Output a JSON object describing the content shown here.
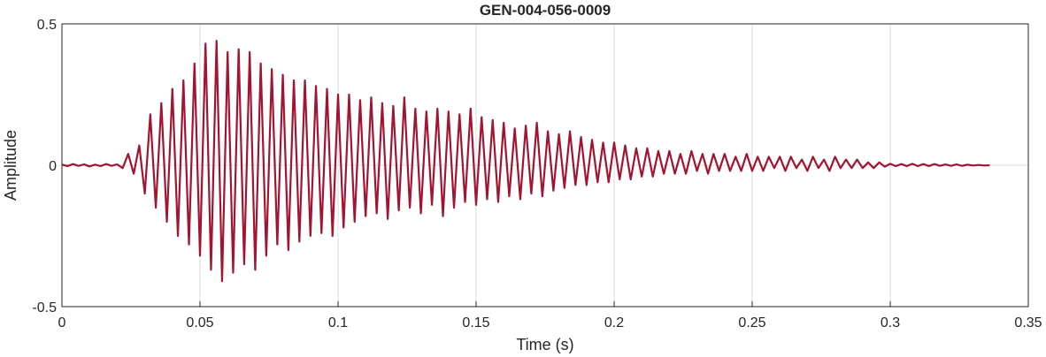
{
  "chart_data": {
    "type": "line",
    "title": "GEN-004-056-0009",
    "x_label": "Time (s)",
    "y_label": "Amplitude",
    "color": "#a2142f",
    "grid": true,
    "xlim": [
      0,
      0.35
    ],
    "xticks": [
      0,
      0.05,
      0.1,
      0.15,
      0.2,
      0.25,
      0.3,
      0.35
    ],
    "ylim": [
      -0.5,
      0.5
    ],
    "yticks": [
      -0.5,
      0,
      0.5
    ],
    "x": [
      0,
      0.002,
      0.004,
      0.006,
      0.008,
      0.01,
      0.012,
      0.014,
      0.016,
      0.018,
      0.02,
      0.022,
      0.024,
      0.026,
      0.028,
      0.03,
      0.032,
      0.034,
      0.036,
      0.038,
      0.04,
      0.042,
      0.044,
      0.046,
      0.048,
      0.05,
      0.052,
      0.054,
      0.056,
      0.058,
      0.06,
      0.062,
      0.064,
      0.066,
      0.068,
      0.07,
      0.072,
      0.074,
      0.076,
      0.078,
      0.08,
      0.082,
      0.084,
      0.086,
      0.088,
      0.09,
      0.092,
      0.094,
      0.096,
      0.098,
      0.1,
      0.102,
      0.104,
      0.106,
      0.108,
      0.11,
      0.112,
      0.114,
      0.116,
      0.118,
      0.12,
      0.122,
      0.124,
      0.126,
      0.128,
      0.13,
      0.132,
      0.134,
      0.136,
      0.138,
      0.14,
      0.142,
      0.144,
      0.146,
      0.148,
      0.15,
      0.152,
      0.154,
      0.156,
      0.158,
      0.16,
      0.162,
      0.164,
      0.166,
      0.168,
      0.17,
      0.172,
      0.174,
      0.176,
      0.178,
      0.18,
      0.182,
      0.184,
      0.186,
      0.188,
      0.19,
      0.192,
      0.194,
      0.196,
      0.198,
      0.2,
      0.202,
      0.204,
      0.206,
      0.208,
      0.21,
      0.212,
      0.214,
      0.216,
      0.218,
      0.22,
      0.222,
      0.224,
      0.226,
      0.228,
      0.23,
      0.232,
      0.234,
      0.236,
      0.238,
      0.24,
      0.242,
      0.244,
      0.246,
      0.248,
      0.25,
      0.252,
      0.254,
      0.256,
      0.258,
      0.26,
      0.262,
      0.264,
      0.266,
      0.268,
      0.27,
      0.272,
      0.274,
      0.276,
      0.278,
      0.28,
      0.282,
      0.284,
      0.286,
      0.288,
      0.29,
      0.292,
      0.294,
      0.296,
      0.298,
      0.3,
      0.302,
      0.304,
      0.306,
      0.308,
      0.31,
      0.312,
      0.314,
      0.316,
      0.318,
      0.32,
      0.322,
      0.324,
      0.326,
      0.328,
      0.33,
      0.332,
      0.334,
      0.336
    ],
    "values": [
      0.002,
      -0.003,
      0.004,
      -0.002,
      0.003,
      -0.004,
      0.002,
      -0.003,
      0.004,
      -0.002,
      0.003,
      -0.01,
      0.04,
      -0.03,
      0.07,
      -0.1,
      0.18,
      -0.15,
      0.22,
      -0.2,
      0.27,
      -0.25,
      0.3,
      -0.28,
      0.36,
      -0.32,
      0.43,
      -0.37,
      0.44,
      -0.41,
      0.4,
      -0.38,
      0.41,
      -0.35,
      0.4,
      -0.37,
      0.36,
      -0.32,
      0.34,
      -0.28,
      0.32,
      -0.3,
      0.3,
      -0.27,
      0.3,
      -0.25,
      0.28,
      -0.24,
      0.27,
      -0.25,
      0.25,
      -0.22,
      0.25,
      -0.2,
      0.23,
      -0.18,
      0.24,
      -0.17,
      0.22,
      -0.19,
      0.21,
      -0.16,
      0.24,
      -0.15,
      0.2,
      -0.17,
      0.19,
      -0.14,
      0.2,
      -0.18,
      0.19,
      -0.15,
      0.18,
      -0.13,
      0.2,
      -0.14,
      0.17,
      -0.12,
      0.16,
      -0.13,
      0.15,
      -0.11,
      0.13,
      -0.12,
      0.14,
      -0.1,
      0.15,
      -0.11,
      0.12,
      -0.09,
      0.11,
      -0.08,
      0.12,
      -0.07,
      0.1,
      -0.07,
      0.09,
      -0.06,
      0.08,
      -0.06,
      0.08,
      -0.05,
      0.07,
      -0.05,
      0.06,
      -0.04,
      0.06,
      -0.04,
      0.05,
      -0.03,
      0.05,
      -0.03,
      0.04,
      -0.03,
      0.05,
      -0.02,
      0.04,
      -0.03,
      0.04,
      -0.02,
      0.04,
      -0.02,
      0.03,
      -0.02,
      0.04,
      -0.02,
      0.03,
      -0.02,
      0.03,
      -0.01,
      0.03,
      -0.02,
      0.03,
      -0.01,
      0.02,
      -0.02,
      0.03,
      -0.01,
      0.02,
      -0.02,
      0.03,
      -0.01,
      0.02,
      -0.01,
      0.02,
      -0.01,
      0.01,
      -0.01,
      0.01,
      -0.005,
      0.005,
      -0.003,
      0.004,
      -0.003,
      0.005,
      -0.003,
      0.004,
      -0.003,
      0.004,
      -0.002,
      0.003,
      -0.002,
      0.003,
      -0.002,
      0.002,
      -0.001,
      0.001,
      -0.001,
      0
    ]
  }
}
